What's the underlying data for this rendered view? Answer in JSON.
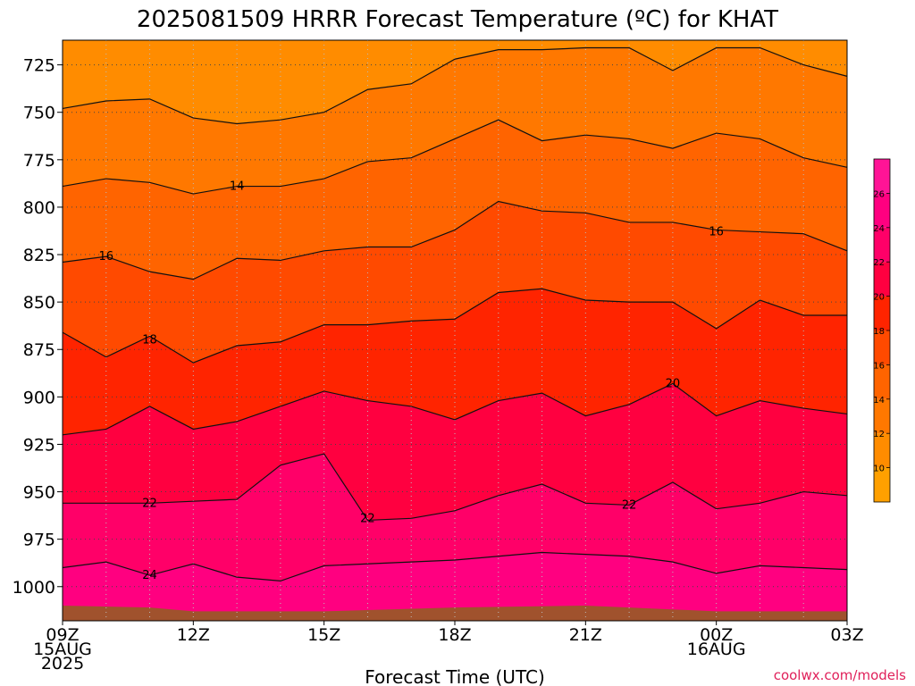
{
  "chart_data": {
    "type": "contour",
    "title": "2025081509 HRRR Forecast Temperature (ºC) for KHAT",
    "xlabel": "Forecast Time (UTC)",
    "ylabel": "",
    "credit": "coolwx.com/models",
    "x_hours": [
      0,
      3,
      6,
      9,
      12,
      15,
      18
    ],
    "x_tick_labels": [
      {
        "hour": 0,
        "lines": [
          "09Z",
          "15AUG",
          "2025"
        ]
      },
      {
        "hour": 3,
        "lines": [
          "12Z"
        ]
      },
      {
        "hour": 6,
        "lines": [
          "15Z"
        ]
      },
      {
        "hour": 9,
        "lines": [
          "18Z"
        ]
      },
      {
        "hour": 12,
        "lines": [
          "21Z"
        ]
      },
      {
        "hour": 15,
        "lines": [
          "00Z",
          "16AUG"
        ]
      },
      {
        "hour": 18,
        "lines": [
          "03Z"
        ]
      }
    ],
    "y_ticks": [
      725,
      750,
      775,
      800,
      825,
      850,
      875,
      900,
      925,
      950,
      975,
      1000
    ],
    "ylim": [
      712,
      1018
    ],
    "y_inverted": true,
    "grid": true,
    "contour_levels": [
      10,
      12,
      14,
      16,
      18,
      20,
      22,
      24,
      26
    ],
    "colorbar": {
      "tick_labels": [
        "10",
        "12",
        "14",
        "16",
        "18",
        "20",
        "22",
        "24",
        "26"
      ],
      "colors": [
        "#ffa000",
        "#ff8c00",
        "#ff7800",
        "#ff6400",
        "#ff4a00",
        "#ff2400",
        "#ff0040",
        "#ff0068",
        "#ff0080",
        "#ff1496"
      ]
    },
    "isotherms": [
      {
        "value": 12,
        "hours": [
          0,
          1,
          2,
          3,
          4,
          5,
          6,
          7,
          8,
          9,
          10,
          11,
          12,
          13,
          14,
          15,
          16,
          17,
          18
        ],
        "pressure": [
          748,
          744,
          743,
          753,
          756,
          754,
          750,
          738,
          735,
          722,
          717,
          717,
          716,
          716,
          728,
          716,
          716,
          725,
          731
        ]
      },
      {
        "value": 14,
        "hours": [
          0,
          1,
          2,
          3,
          4,
          5,
          6,
          7,
          8,
          9,
          10,
          11,
          12,
          13,
          14,
          15,
          16,
          17,
          18
        ],
        "pressure": [
          789,
          785,
          787,
          793,
          789,
          789,
          785,
          776,
          774,
          764,
          754,
          765,
          762,
          764,
          769,
          761,
          764,
          774,
          779
        ]
      },
      {
        "value": 16,
        "hours": [
          0,
          1,
          2,
          3,
          4,
          5,
          6,
          7,
          8,
          9,
          10,
          11,
          12,
          13,
          14,
          15,
          16,
          17,
          18
        ],
        "pressure": [
          829,
          826,
          834,
          838,
          827,
          828,
          823,
          821,
          821,
          812,
          797,
          802,
          803,
          808,
          808,
          812,
          813,
          814,
          823
        ]
      },
      {
        "value": 18,
        "hours": [
          0,
          1,
          2,
          3,
          4,
          5,
          6,
          7,
          8,
          9,
          10,
          11,
          12,
          13,
          14,
          15,
          16,
          17,
          18
        ],
        "pressure": [
          866,
          879,
          868,
          882,
          873,
          871,
          862,
          862,
          860,
          859,
          845,
          843,
          849,
          850,
          850,
          864,
          849,
          857,
          857
        ]
      },
      {
        "value": 20,
        "hours": [
          0,
          1,
          2,
          3,
          4,
          5,
          6,
          7,
          8,
          9,
          10,
          11,
          12,
          13,
          14,
          15,
          16,
          17,
          18
        ],
        "pressure": [
          920,
          917,
          905,
          917,
          913,
          905,
          897,
          902,
          905,
          912,
          902,
          898,
          910,
          904,
          893,
          910,
          902,
          906,
          909
        ]
      },
      {
        "value": 22,
        "hours": [
          0,
          1,
          2,
          3,
          4,
          5,
          6,
          7,
          8,
          9,
          10,
          11,
          12,
          13,
          14,
          15,
          16,
          17,
          18
        ],
        "pressure": [
          956,
          956,
          956,
          955,
          954,
          936,
          930,
          965,
          964,
          960,
          952,
          946,
          956,
          957,
          945,
          959,
          956,
          950,
          952
        ]
      },
      {
        "value": 24,
        "hours": [
          0,
          1,
          2,
          3,
          4,
          5,
          6,
          7,
          8,
          9,
          10,
          11,
          12,
          13,
          14,
          15,
          16,
          17,
          18
        ],
        "pressure": [
          990,
          987,
          994,
          988,
          995,
          997,
          989,
          988,
          987,
          986,
          984,
          982,
          983,
          984,
          987,
          993,
          989,
          990,
          991
        ]
      }
    ],
    "contour_labels": [
      {
        "text": "14",
        "hour": 4,
        "pressure": 789
      },
      {
        "text": "16",
        "hour": 1,
        "pressure": 826
      },
      {
        "text": "16",
        "hour": 15,
        "pressure": 813
      },
      {
        "text": "18",
        "hour": 2,
        "pressure": 870
      },
      {
        "text": "20",
        "hour": 14,
        "pressure": 893
      },
      {
        "text": "22",
        "hour": 2,
        "pressure": 956
      },
      {
        "text": "22",
        "hour": 7,
        "pressure": 964
      },
      {
        "text": "22",
        "hour": 13,
        "pressure": 957
      },
      {
        "text": "24",
        "hour": 2,
        "pressure": 994
      }
    ]
  }
}
